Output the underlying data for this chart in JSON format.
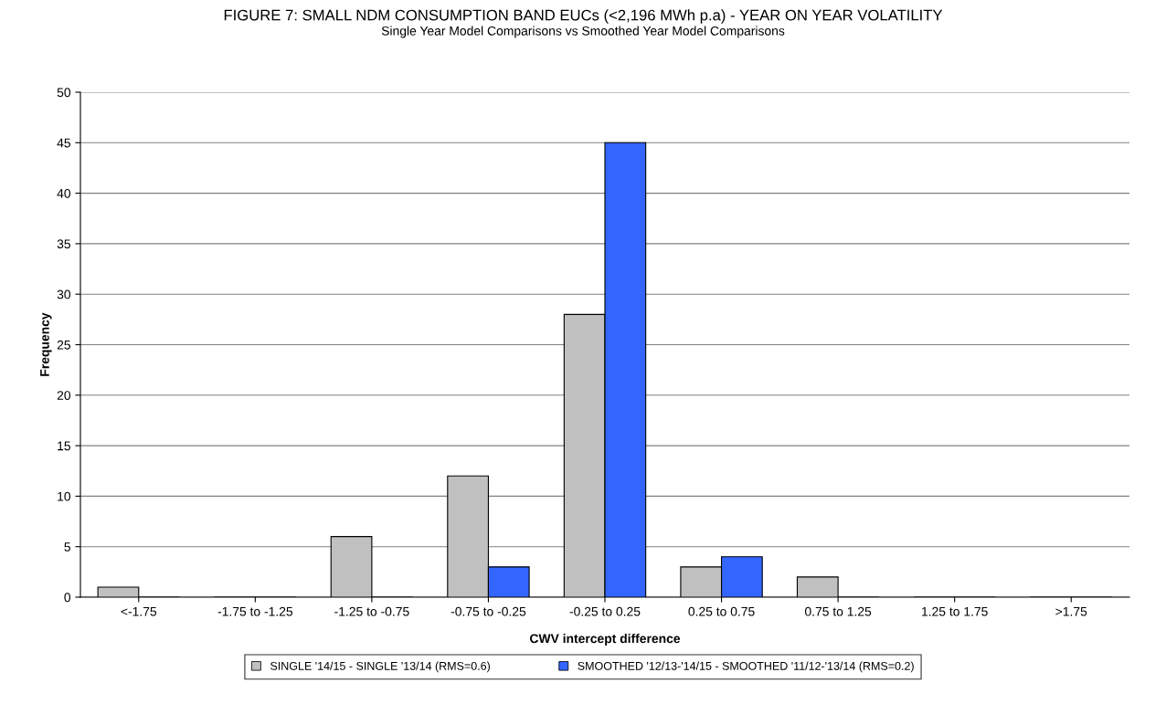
{
  "chart_data": {
    "type": "bar",
    "title": "FIGURE 7: SMALL NDM CONSUMPTION BAND EUCs (<2,196 MWh p.a) - YEAR ON YEAR VOLATILITY",
    "subtitle": "Single Year Model Comparisons vs Smoothed Year Model Comparisons",
    "xlabel": "CWV intercept difference",
    "ylabel": "Frequency",
    "categories": [
      "<-1.75",
      "-1.75 to -1.25",
      "-1.25 to -0.75",
      "-0.75 to -0.25",
      "-0.25 to 0.25",
      "0.25 to 0.75",
      "0.75 to 1.25",
      "1.25 to 1.75",
      ">1.75"
    ],
    "series": [
      {
        "name": "SINGLE '14/15 - SINGLE '13/14 (RMS=0.6)",
        "color": "#c0c0c0",
        "values": [
          1,
          0,
          6,
          12,
          28,
          3,
          2,
          0,
          0
        ]
      },
      {
        "name": "SMOOTHED '12/13-'14/15 - SMOOTHED '11/12-'13/14 (RMS=0.2)",
        "color": "#3366ff",
        "values": [
          0,
          0,
          0,
          3,
          45,
          4,
          0,
          0,
          0
        ]
      }
    ],
    "ylim": [
      0,
      50
    ],
    "yticks": [
      0,
      5,
      10,
      15,
      20,
      25,
      30,
      35,
      40,
      45,
      50
    ],
    "grid": "y",
    "legend": "bottom"
  }
}
